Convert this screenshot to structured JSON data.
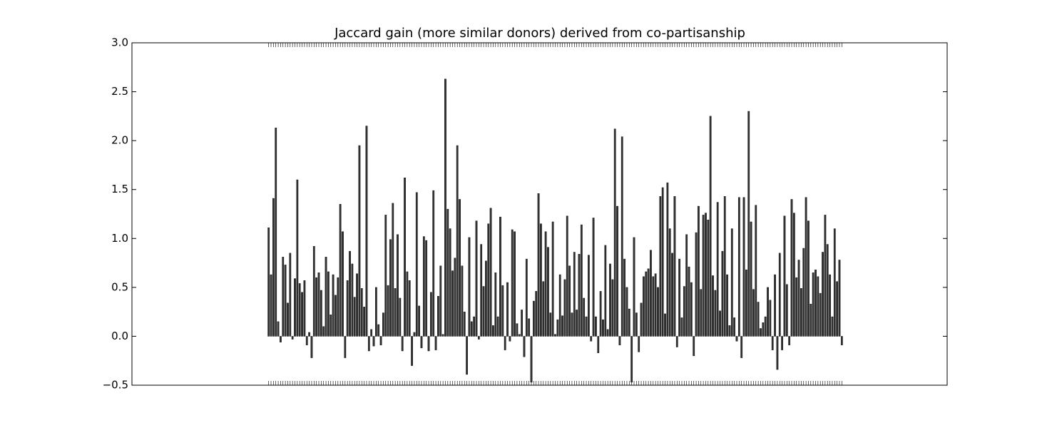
{
  "chart_data": {
    "type": "bar",
    "title": "Jaccard gain (more similar donors) derived from co-partisanship",
    "color": "#333333",
    "ylim": [
      -0.5,
      3.0
    ],
    "yticks": [
      {
        "value": -0.5,
        "label": "−0.5"
      },
      {
        "value": 0,
        "label": "0.0"
      },
      0.5,
      {
        "value": 1,
        "label": "1.0"
      },
      1.5,
      {
        "value": 2,
        "label": "2.0"
      },
      2.5,
      {
        "value": 3,
        "label": "3.0"
      }
    ],
    "values": [
      1.11,
      0.63,
      1.41,
      2.13,
      0.15,
      -0.06,
      0.81,
      0.73,
      0.34,
      0.85,
      -0.03,
      0.59,
      1.6,
      0.54,
      0.45,
      0.57,
      -0.09,
      0.04,
      -0.22,
      0.92,
      0.6,
      0.65,
      0.47,
      0.1,
      0.81,
      0.66,
      0.22,
      0.63,
      0.42,
      0.6,
      1.35,
      1.07,
      -0.22,
      0.57,
      0.87,
      0.74,
      0.4,
      0.64,
      1.95,
      0.49,
      0.3,
      2.15,
      -0.15,
      0.07,
      -0.1,
      0.5,
      0.12,
      -0.09,
      0.24,
      1.24,
      0.52,
      0.99,
      1.36,
      0.49,
      1.04,
      0.39,
      -0.15,
      1.62,
      0.66,
      0.57,
      -0.3,
      0.04,
      1.47,
      0.31,
      -0.12,
      1.02,
      0.98,
      -0.15,
      0.45,
      1.49,
      -0.14,
      0.41,
      0.72,
      0.02,
      2.63,
      1.3,
      1.1,
      0.67,
      0.8,
      1.95,
      1.4,
      0.72,
      0.25,
      -0.39,
      1.01,
      0.15,
      0.2,
      1.18,
      -0.03,
      0.94,
      0.51,
      0.77,
      1.15,
      1.31,
      0.11,
      0.65,
      0.2,
      1.22,
      0.52,
      -0.14,
      0.55,
      -0.05,
      1.09,
      1.07,
      0.13,
      0.02,
      0.27,
      -0.21,
      0.79,
      0.18,
      -0.47,
      0.36,
      0.46,
      1.46,
      1.15,
      0.56,
      1.07,
      0.91,
      0.24,
      1.17,
      0.02,
      0.17,
      0.63,
      0.21,
      0.58,
      1.23,
      0.72,
      0.24,
      0.86,
      0.27,
      0.84,
      1.14,
      0.39,
      0.2,
      0.83,
      -0.05,
      1.21,
      0.2,
      -0.17,
      0.46,
      0.17,
      0.93,
      0.07,
      0.74,
      0.58,
      2.12,
      1.33,
      -0.09,
      2.04,
      0.79,
      0.5,
      0.28,
      -0.47,
      1.01,
      0.24,
      -0.16,
      0.34,
      0.61,
      0.66,
      0.69,
      0.88,
      0.61,
      0.64,
      0.5,
      1.43,
      1.52,
      0.23,
      1.57,
      1.1,
      0.85,
      1.43,
      -0.11,
      0.79,
      0.19,
      0.51,
      1.04,
      0.71,
      0.55,
      -0.2,
      1.06,
      1.33,
      0.48,
      1.24,
      1.26,
      1.19,
      2.25,
      0.62,
      0.47,
      1.37,
      0.26,
      0.87,
      1.43,
      0.63,
      0.11,
      1.1,
      0.19,
      -0.05,
      1.42,
      -0.22,
      1.42,
      0.68,
      2.3,
      1.17,
      0.48,
      1.34,
      0.35,
      0.08,
      0.14,
      0.2,
      0.5,
      0.37,
      -0.14,
      0.63,
      -0.34,
      0.85,
      -0.14,
      1.23,
      0.53,
      -0.09,
      1.4,
      1.26,
      0.6,
      0.78,
      0.49,
      0.9,
      1.42,
      1.18,
      0.33,
      0.65,
      0.68,
      0.61,
      0.44,
      0.86,
      1.24,
      0.94,
      0.63,
      0.2,
      1.1,
      0.56,
      0.78,
      -0.09
    ]
  }
}
